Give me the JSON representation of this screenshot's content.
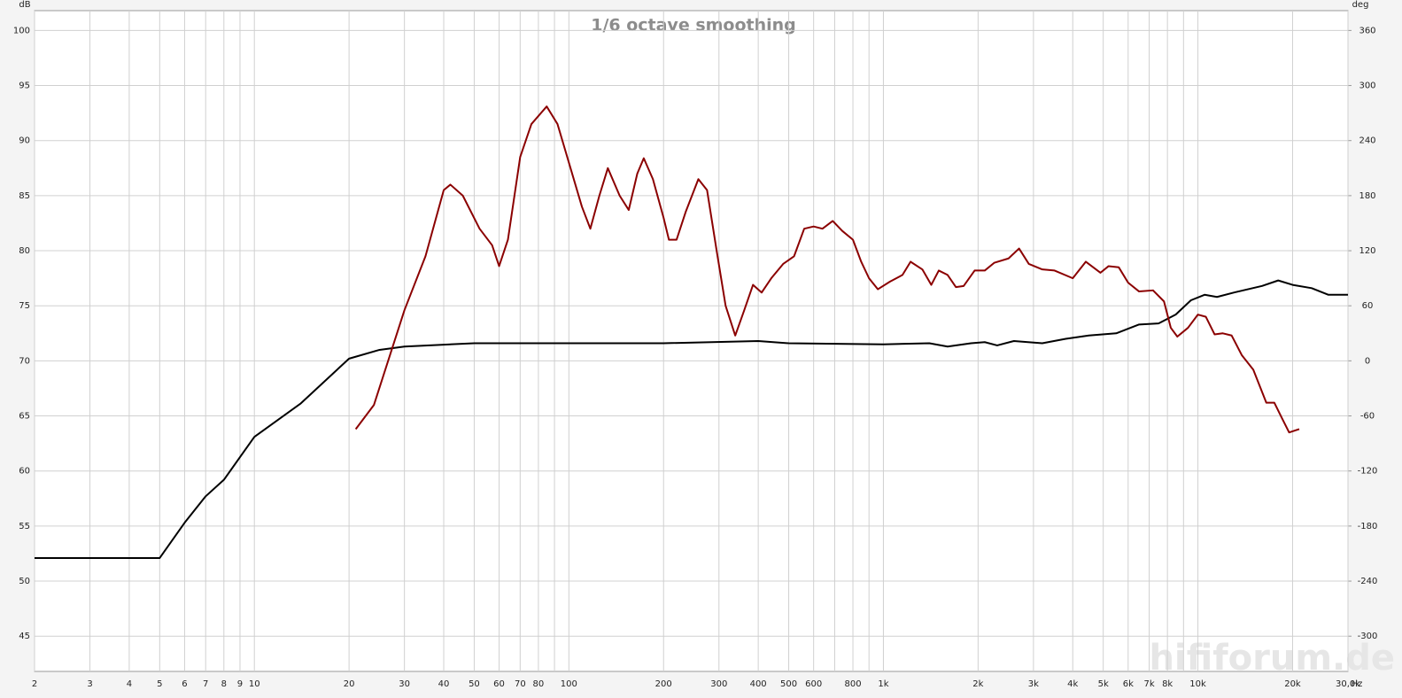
{
  "chart_data": {
    "type": "line",
    "title": "1/6 octave smoothing",
    "y_label": "dB",
    "y2_label": "deg",
    "x_label": "Hz",
    "watermark": "hififorum.de",
    "xscale": "log",
    "grid": true,
    "xlim": [
      2,
      30000
    ],
    "ylim": [
      41.8,
      101.8
    ],
    "y2lim": [
      -338.4,
      381.6
    ],
    "xticks": [
      2,
      3,
      4,
      5,
      6,
      7,
      8,
      9,
      10,
      20,
      30,
      40,
      50,
      60,
      70,
      80,
      100,
      200,
      300,
      400,
      500,
      600,
      800,
      {
        "value": 1000,
        "label": "1k"
      },
      {
        "value": 2000,
        "label": "2k"
      },
      {
        "value": 3000,
        "label": "3k"
      },
      {
        "value": 4000,
        "label": "4k"
      },
      {
        "value": 5000,
        "label": "5k"
      },
      {
        "value": 6000,
        "label": "6k"
      },
      {
        "value": 7000,
        "label": "7k"
      },
      {
        "value": 8000,
        "label": "8k"
      },
      {
        "value": 10000,
        "label": "10k"
      },
      {
        "value": 20000,
        "label": "20k"
      },
      {
        "value": 30000,
        "label": "30,0k"
      }
    ],
    "xticks_minor": [
      90,
      700,
      900,
      9000
    ],
    "yticks": [
      45,
      50,
      55,
      60,
      65,
      70,
      75,
      80,
      85,
      90,
      95,
      100
    ],
    "y2ticks": [
      -300,
      -240,
      -180,
      -120,
      -60,
      0,
      60,
      120,
      180,
      240,
      300,
      360
    ],
    "series": [
      {
        "color": "#000000",
        "x": [
          2,
          5,
          6,
          7,
          8,
          10,
          14,
          20,
          25,
          30,
          50,
          100,
          200,
          400,
          500,
          1000,
          1400,
          1600,
          1900,
          2100,
          2300,
          2600,
          3200,
          3800,
          4500,
          5500,
          6500,
          7500,
          8500,
          9500,
          10500,
          11500,
          13000,
          16000,
          18000,
          20000,
          23000,
          26000,
          30000
        ],
        "values": [
          52.1,
          52.1,
          55.3,
          57.7,
          59.2,
          63.1,
          66.1,
          70.2,
          71.0,
          71.3,
          71.6,
          71.6,
          71.6,
          71.8,
          71.6,
          71.5,
          71.6,
          71.3,
          71.6,
          71.7,
          71.4,
          71.8,
          71.6,
          72.0,
          72.3,
          72.5,
          73.3,
          73.4,
          74.2,
          75.5,
          76.0,
          75.8,
          76.2,
          76.8,
          77.3,
          76.9,
          76.6,
          76.0,
          76.0
        ]
      },
      {
        "color": "#8b0000",
        "x": [
          21,
          24,
          30,
          35,
          40,
          42,
          46,
          52,
          57,
          60,
          64,
          70,
          76,
          85,
          92,
          100,
          110,
          117,
          125,
          133,
          145,
          155,
          165,
          173,
          185,
          200,
          208,
          220,
          235,
          258,
          275,
          295,
          315,
          338,
          360,
          385,
          410,
          440,
          480,
          520,
          560,
          600,
          640,
          690,
          740,
          800,
          850,
          900,
          960,
          1050,
          1150,
          1220,
          1330,
          1420,
          1500,
          1600,
          1700,
          1800,
          1950,
          2100,
          2250,
          2500,
          2700,
          2900,
          3200,
          3500,
          4000,
          4400,
          4900,
          5200,
          5600,
          6000,
          6500,
          7200,
          7800,
          8200,
          8600,
          9300,
          10000,
          10600,
          11300,
          12000,
          12800,
          13800,
          15000,
          16500,
          17500,
          18500,
          19500,
          21000
        ],
        "values": [
          63.8,
          66,
          74.6,
          79.5,
          85.5,
          86,
          85,
          82,
          80.5,
          78.6,
          81,
          88.5,
          91.5,
          93.1,
          91.5,
          88,
          84,
          82,
          85,
          87.5,
          85,
          83.7,
          87,
          88.4,
          86.5,
          83,
          81,
          81,
          83.5,
          86.5,
          85.5,
          80,
          75,
          72.3,
          74.5,
          76.9,
          76.2,
          77.5,
          78.8,
          79.5,
          82,
          82.2,
          82,
          82.7,
          81.8,
          81,
          79,
          77.5,
          76.5,
          77.2,
          77.8,
          79,
          78.3,
          76.9,
          78.2,
          77.8,
          76.7,
          76.8,
          78.2,
          78.2,
          78.9,
          79.3,
          80.2,
          78.8,
          78.3,
          78.2,
          77.5,
          79,
          78,
          78.6,
          78.5,
          77.1,
          76.3,
          76.4,
          75.4,
          73,
          72.2,
          73,
          74.2,
          74,
          72.4,
          72.5,
          72.3,
          70.5,
          69.2,
          66.2,
          66.2,
          64.8,
          63.5,
          63.8
        ]
      }
    ]
  }
}
